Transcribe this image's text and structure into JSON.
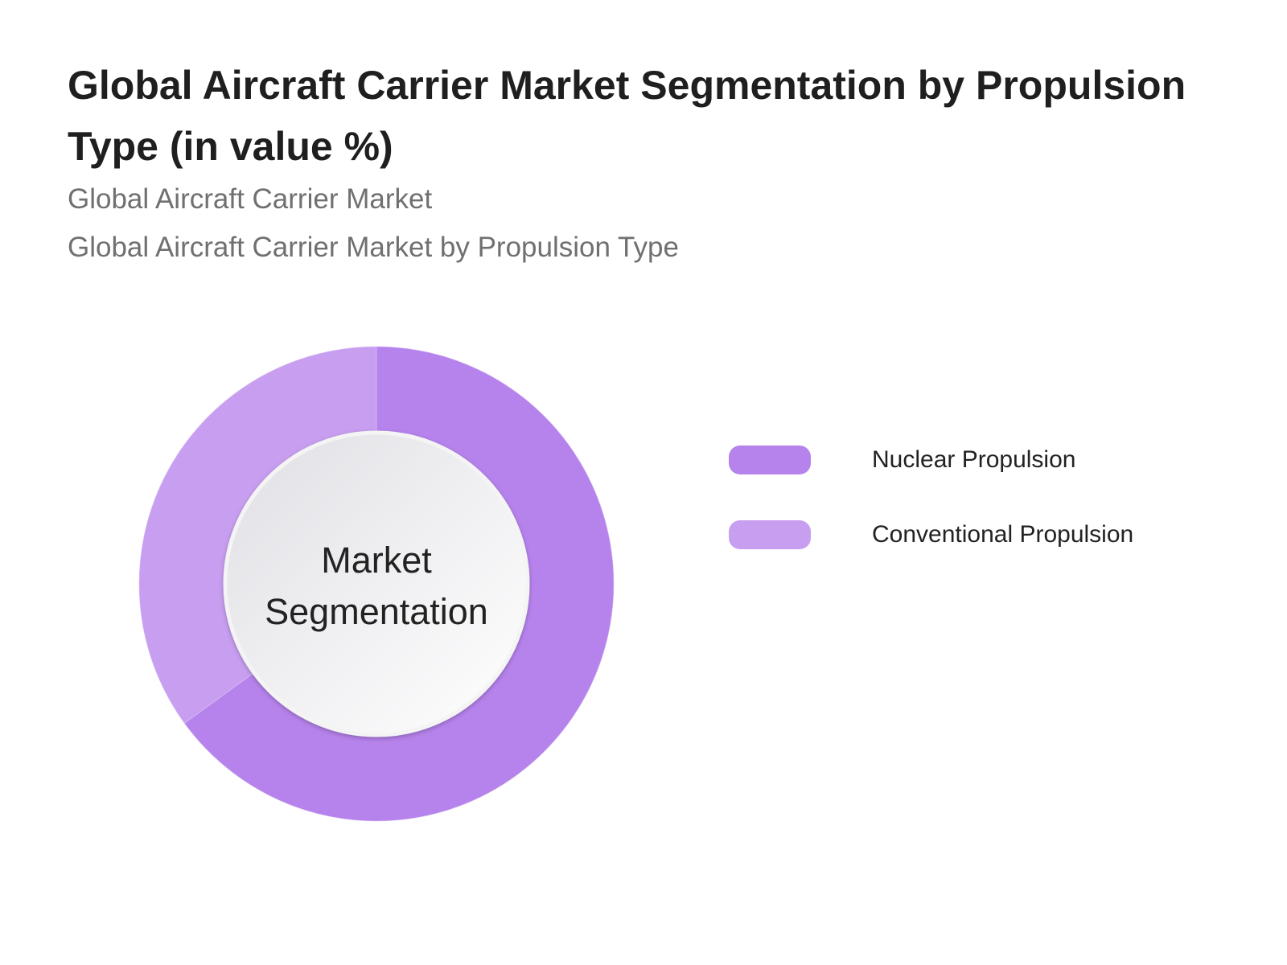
{
  "title": "Global Aircraft Carrier Market Segmentation by Propulsion Type (in value %)",
  "subtitle1": "Global Aircraft Carrier Market",
  "subtitle2": "Global Aircraft Carrier Market  by Propulsion Type",
  "center_label": "Market Segmentation",
  "chart_data": {
    "type": "pie",
    "variant": "donut",
    "title": "Global Aircraft Carrier Market Segmentation by Propulsion Type (in value %)",
    "categories": [
      "Nuclear Propulsion",
      "Conventional Propulsion"
    ],
    "values": [
      65,
      35
    ],
    "colors": [
      "#b683ec",
      "#c89ff0"
    ],
    "legend_position": "right",
    "data_labels": false
  }
}
